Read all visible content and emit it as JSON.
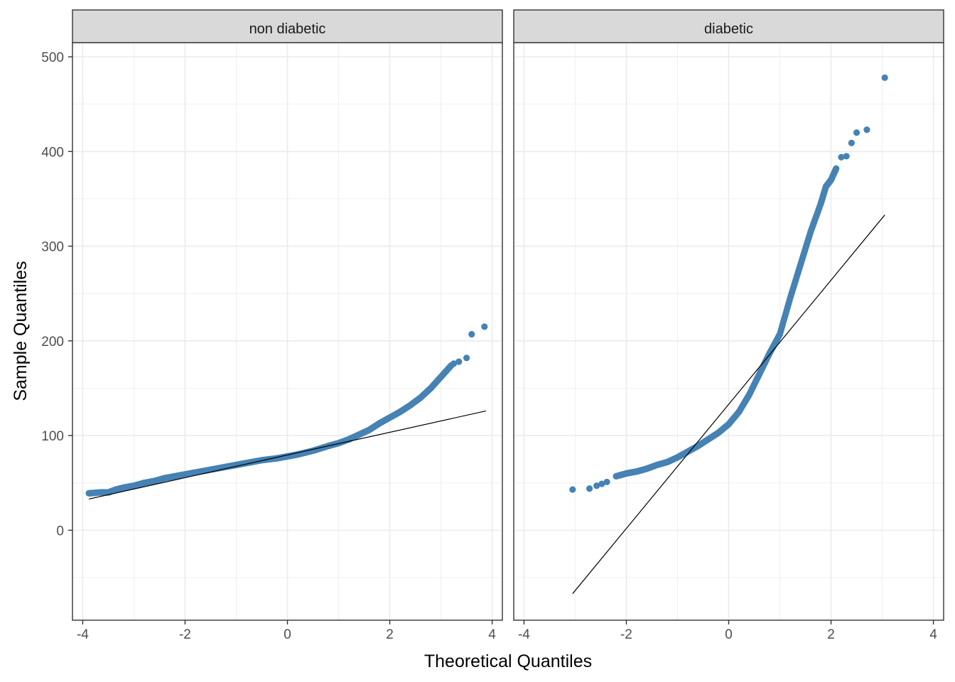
{
  "chart_data": {
    "type": "scatter",
    "xlabel": "Theoretical Quantiles",
    "ylabel": "Sample Quantiles",
    "xlim": [
      -4.2,
      4.2
    ],
    "ylim": [
      -95,
      515
    ],
    "x_ticks": [
      -4,
      -2,
      0,
      2,
      4
    ],
    "y_ticks": [
      0,
      100,
      200,
      300,
      400,
      500
    ],
    "grid": true,
    "point_color": "#4682B4",
    "line_color": "#000000",
    "panel_border_color": "#333333",
    "strip_fill": "#D9D9D9",
    "grid_color": "#EBEBEB",
    "panels": [
      {
        "label": "non diabetic",
        "reference_line": {
          "x": [
            -3.88,
            3.88
          ],
          "y": [
            33,
            126
          ]
        },
        "curve": [
          [
            -3.88,
            39
          ],
          [
            -3.65,
            40
          ],
          [
            -3.5,
            40
          ],
          [
            -3.35,
            43
          ],
          [
            -3.2,
            45
          ],
          [
            -3.0,
            47
          ],
          [
            -2.8,
            50
          ],
          [
            -2.6,
            52
          ],
          [
            -2.4,
            55
          ],
          [
            -2.2,
            57
          ],
          [
            -2.0,
            59
          ],
          [
            -1.8,
            61
          ],
          [
            -1.5,
            64
          ],
          [
            -1.2,
            67
          ],
          [
            -1.0,
            69
          ],
          [
            -0.8,
            71
          ],
          [
            -0.5,
            74
          ],
          [
            -0.2,
            76
          ],
          [
            0.0,
            78
          ],
          [
            0.2,
            80
          ],
          [
            0.5,
            84
          ],
          [
            0.8,
            89
          ],
          [
            1.0,
            92
          ],
          [
            1.2,
            96
          ],
          [
            1.4,
            101
          ],
          [
            1.6,
            106
          ],
          [
            1.8,
            113
          ],
          [
            2.0,
            119
          ],
          [
            2.2,
            125
          ],
          [
            2.4,
            132
          ],
          [
            2.6,
            140
          ],
          [
            2.8,
            150
          ],
          [
            3.0,
            162
          ],
          [
            3.2,
            174
          ]
        ],
        "extra_points": [
          [
            3.25,
            176
          ],
          [
            3.35,
            178
          ],
          [
            3.5,
            182
          ],
          [
            3.6,
            207
          ],
          [
            3.85,
            215
          ]
        ]
      },
      {
        "label": "diabetic",
        "reference_line": {
          "x": [
            -3.05,
            3.05
          ],
          "y": [
            -67,
            333
          ]
        },
        "curve": [
          [
            -2.2,
            57
          ],
          [
            -2.0,
            60
          ],
          [
            -1.8,
            62
          ],
          [
            -1.6,
            65
          ],
          [
            -1.4,
            69
          ],
          [
            -1.2,
            72
          ],
          [
            -1.0,
            77
          ],
          [
            -0.8,
            83
          ],
          [
            -0.6,
            89
          ],
          [
            -0.4,
            96
          ],
          [
            -0.2,
            103
          ],
          [
            0.0,
            112
          ],
          [
            0.2,
            125
          ],
          [
            0.4,
            143
          ],
          [
            0.6,
            165
          ],
          [
            0.8,
            187
          ],
          [
            1.0,
            207
          ],
          [
            1.2,
            245
          ],
          [
            1.4,
            280
          ],
          [
            1.6,
            315
          ],
          [
            1.8,
            345
          ],
          [
            1.9,
            363
          ],
          [
            2.0,
            370
          ],
          [
            2.1,
            382
          ]
        ],
        "extra_points": [
          [
            -3.05,
            43
          ],
          [
            -2.72,
            44
          ],
          [
            -2.58,
            47
          ],
          [
            -2.48,
            49
          ],
          [
            -2.38,
            51
          ],
          [
            2.2,
            394
          ],
          [
            2.3,
            395
          ],
          [
            2.4,
            409
          ],
          [
            2.5,
            420
          ],
          [
            2.7,
            423
          ],
          [
            3.05,
            478
          ]
        ]
      }
    ]
  }
}
